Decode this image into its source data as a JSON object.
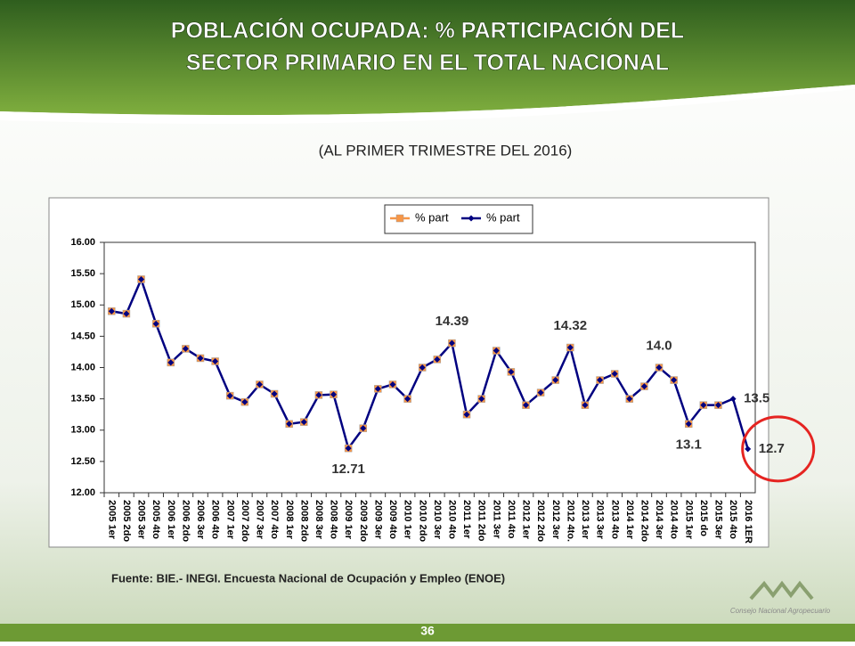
{
  "chart_data": {
    "type": "line",
    "title": [
      "POBLACIÓN OCUPADA: % PARTICIPACIÓN DEL",
      "SECTOR PRIMARIO EN EL TOTAL NACIONAL"
    ],
    "subtitle": "(AL PRIMER TRIMESTRE DEL 2016)",
    "source": "Fuente: BIE.- INEGI. Encuesta Nacional de Ocupación y Empleo (ENOE)",
    "categories": [
      "2005 1er",
      "2005 2do",
      "2005 3er",
      "2005 4to",
      "2006 1er",
      "2006 2do",
      "2006 3er",
      "2006 4to",
      "2007 1er",
      "2007 2do",
      "2007 3er",
      "2007 4to",
      "2008 1er",
      "2008 2do",
      "2008 3er",
      "2008 4to",
      "2009 1er",
      "2009 2do",
      "2009 3er",
      "2009 4to",
      "2010 1er",
      "2010 2do",
      "2010 3er",
      "2010 4to",
      "2011 1er",
      "2011 2do",
      "2011 3er",
      "2011 4to",
      "2012 1er",
      "2012 2do",
      "2012 3er",
      "2012 4to.",
      "2013 1er",
      "2013 3er",
      "2013 4to",
      "2014 1er",
      "2014 2do",
      "2014 3er",
      "2014 4to",
      "2015 1er",
      "2015 do",
      "2015 3er",
      "2015 4to",
      "2016 1ER"
    ],
    "series": [
      {
        "name": "% part",
        "color": "#f79646",
        "marker": "square",
        "values": [
          14.9,
          14.86,
          15.41,
          14.7,
          14.08,
          14.3,
          14.15,
          14.1,
          13.55,
          13.45,
          13.73,
          13.58,
          13.1,
          13.13,
          13.56,
          13.57,
          12.71,
          13.03,
          13.66,
          13.73,
          13.5,
          14.0,
          14.13,
          14.39,
          13.25,
          13.5,
          14.27,
          13.93,
          13.4,
          13.6,
          13.8,
          14.32,
          13.4,
          13.8,
          13.9,
          13.5,
          13.7,
          14.0,
          13.8,
          13.1,
          13.4,
          13.4,
          null,
          null
        ]
      },
      {
        "name": "% part",
        "color": "#000080",
        "marker": "diamond",
        "values": [
          14.9,
          14.86,
          15.41,
          14.7,
          14.08,
          14.3,
          14.15,
          14.1,
          13.55,
          13.45,
          13.73,
          13.58,
          13.1,
          13.13,
          13.56,
          13.57,
          12.71,
          13.03,
          13.66,
          13.73,
          13.5,
          14.0,
          14.13,
          14.39,
          13.25,
          13.5,
          14.27,
          13.93,
          13.4,
          13.6,
          13.8,
          14.32,
          13.4,
          13.8,
          13.9,
          13.5,
          13.7,
          14.0,
          13.8,
          13.1,
          13.4,
          13.4,
          13.5,
          12.7
        ],
        "value_labels": [
          null,
          null,
          null,
          null,
          null,
          null,
          null,
          null,
          null,
          null,
          null,
          null,
          null,
          null,
          null,
          null,
          "12.71",
          null,
          null,
          null,
          null,
          null,
          null,
          "14.39",
          null,
          null,
          null,
          null,
          null,
          null,
          null,
          "14.32",
          null,
          null,
          null,
          null,
          null,
          "14.0",
          null,
          "13.1",
          null,
          null,
          "13.5",
          "12.7"
        ]
      }
    ],
    "ylim": [
      12,
      16
    ],
    "yticks": [
      {
        "value": 12,
        "label": "12.00"
      },
      {
        "value": 12.5,
        "label": "12.50"
      },
      {
        "value": 13,
        "label": "13.00"
      },
      {
        "value": 13.5,
        "label": "13.50"
      },
      {
        "value": 14,
        "label": "14.00"
      },
      {
        "value": 14.5,
        "label": "14.50"
      },
      {
        "value": 15,
        "label": "15.00"
      },
      {
        "value": 15.5,
        "label": "15.50"
      },
      {
        "value": 16,
        "label": "16.00"
      }
    ],
    "grid": false,
    "legend": "top"
  },
  "footer": {
    "page": "36",
    "logo": "Consejo Nacional Agropecuario"
  }
}
